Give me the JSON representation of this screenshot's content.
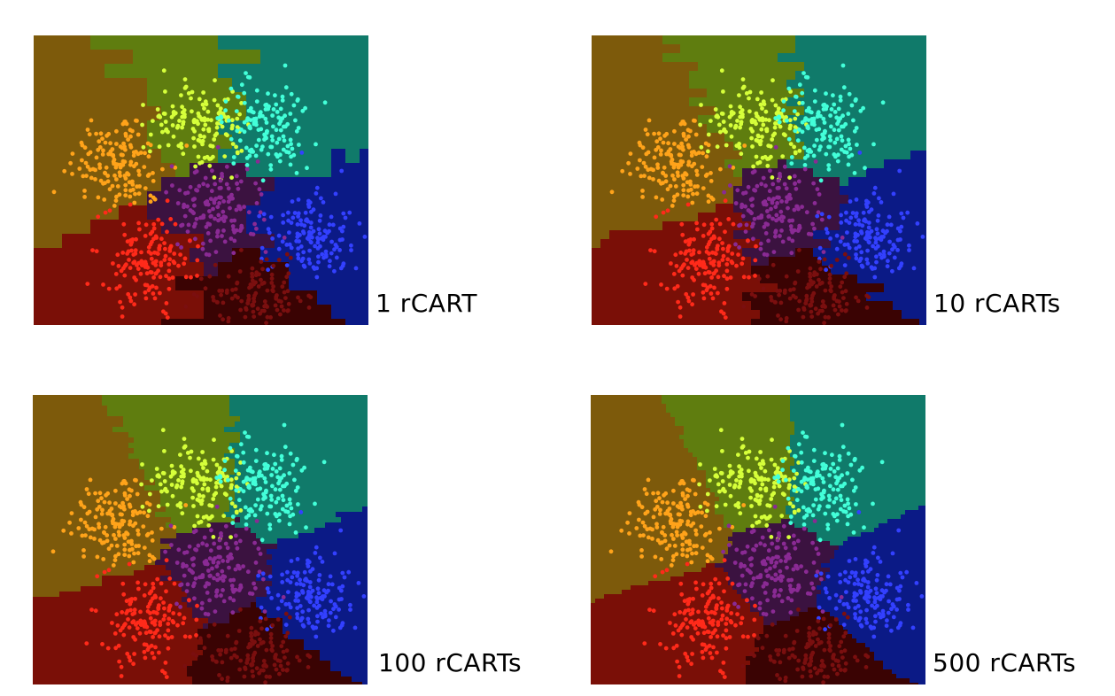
{
  "panels": [
    {
      "label": "1 rCART",
      "level": 0
    },
    {
      "label": "10 rCARTs",
      "level": 1
    },
    {
      "label": "100 rCARTs",
      "level": 2
    },
    {
      "label": "500 rCARTs",
      "level": 3
    }
  ],
  "classes": [
    {
      "name": "orange",
      "region": "#7d5a0b",
      "point": "#ffa31a"
    },
    {
      "name": "yellow-green",
      "region": "#5f7d0f",
      "point": "#d6ff3a"
    },
    {
      "name": "cyan",
      "region": "#107a6a",
      "point": "#43ffd9"
    },
    {
      "name": "purple",
      "region": "#3b1240",
      "point": "#8a2a94"
    },
    {
      "name": "blue",
      "region": "#0b1a86",
      "point": "#3340ff"
    },
    {
      "name": "red",
      "region": "#7a0f07",
      "point": "#ff2a1a"
    },
    {
      "name": "dark-red",
      "region": "#3a0303",
      "point": "#7a0f0f"
    }
  ]
}
